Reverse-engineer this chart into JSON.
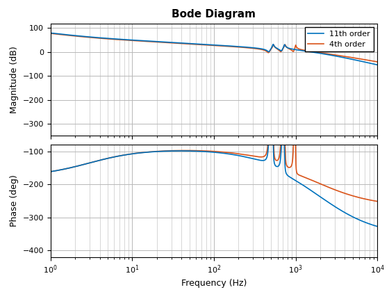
{
  "title": "Bode Diagram",
  "xlabel": "Frequency (Hz)",
  "ylabel_mag": "Magnitude (dB)",
  "ylabel_phase": "Phase (deg)",
  "legend": [
    "11th order",
    "4th order"
  ],
  "colors": [
    "#0072BD",
    "#D95319"
  ],
  "line_width": 1.2,
  "freq_range": [
    1,
    10000
  ],
  "mag_ylim": [
    -350,
    120
  ],
  "mag_yticks": [
    100,
    0,
    -100,
    -200,
    -300
  ],
  "phase_ylim": [
    -420,
    -80
  ],
  "phase_yticks": [
    -100,
    -200,
    -300,
    -400
  ],
  "background_color": "#ffffff",
  "grid_color": "#b8b8b8"
}
